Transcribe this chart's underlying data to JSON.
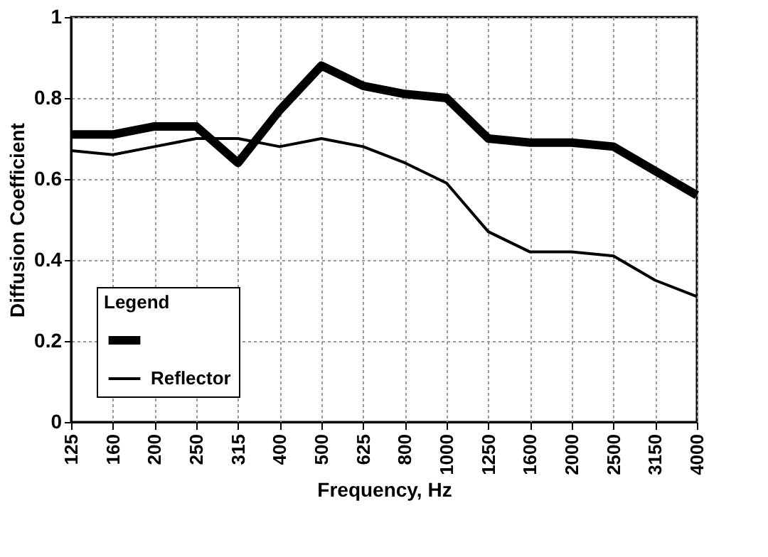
{
  "chart_data": {
    "type": "line",
    "xlabel": "Frequency, Hz",
    "ylabel": "Diffusion Coefficient",
    "legend_title": "Legend",
    "categories": [
      "125",
      "160",
      "200",
      "250",
      "315",
      "400",
      "500",
      "625",
      "800",
      "1000",
      "1250",
      "1600",
      "2000",
      "2500",
      "3150",
      "4000"
    ],
    "series": [
      {
        "color": "#000000",
        "values": [
          0.71,
          0.71,
          0.73,
          0.73,
          0.64,
          0.77,
          0.88,
          0.83,
          0.81,
          0.8,
          0.7,
          0.69,
          0.69,
          0.68,
          0.62,
          0.56
        ]
      },
      {
        "name": "Reflector",
        "color": "#000000",
        "values": [
          0.67,
          0.66,
          0.68,
          0.7,
          0.7,
          0.68,
          0.7,
          0.68,
          0.64,
          0.59,
          0.47,
          0.42,
          0.42,
          0.41,
          0.35,
          0.31
        ]
      }
    ],
    "ylim": [
      0,
      1
    ],
    "yticks": [
      0,
      0.2,
      0.4,
      0.6,
      0.8,
      1
    ],
    "grid": true,
    "legend": "bottom left",
    "line_style": "solid",
    "marker": "none"
  }
}
